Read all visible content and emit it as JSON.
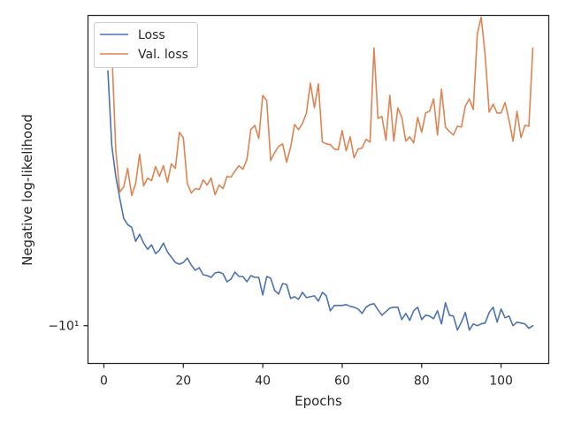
{
  "chart_data": {
    "type": "line",
    "xlabel": "Epochs",
    "ylabel": "Negative log-likelihood",
    "xlim": [
      -4,
      112
    ],
    "ylim": [
      -10.43,
      -6.47
    ],
    "yscale": "symlog",
    "xticks": [
      0,
      20,
      40,
      60,
      80,
      100
    ],
    "yticks": [
      {
        "value": -10,
        "label": "−10¹"
      }
    ],
    "legend": "top-left",
    "grid": false,
    "series": [
      {
        "name": "Loss",
        "color": "#4c72b0",
        "x": [
          1,
          2,
          3,
          4,
          5,
          6,
          7,
          8,
          9,
          10,
          11,
          12,
          13,
          14,
          15,
          16,
          17,
          18,
          19,
          20,
          21,
          22,
          23,
          24,
          25,
          26,
          27,
          28,
          29,
          30,
          31,
          32,
          33,
          34,
          35,
          36,
          37,
          38,
          39,
          40,
          41,
          42,
          43,
          44,
          45,
          46,
          47,
          48,
          49,
          50,
          51,
          52,
          53,
          54,
          55,
          56,
          57,
          58,
          59,
          60,
          61,
          62,
          63,
          64,
          65,
          66,
          67,
          68,
          69,
          70,
          71,
          72,
          73,
          74,
          75,
          76,
          77,
          78,
          79,
          80,
          81,
          82,
          83,
          84,
          85,
          86,
          87,
          88,
          89,
          90,
          91,
          92,
          93,
          94,
          95,
          96,
          97,
          98,
          99,
          100,
          101,
          102,
          103,
          104,
          105,
          106,
          107,
          108
        ],
        "y": [
          -7.1,
          -7.95,
          -8.3,
          -8.55,
          -8.78,
          -8.85,
          -8.88,
          -9.04,
          -8.96,
          -9.06,
          -9.13,
          -9.08,
          -9.18,
          -9.14,
          -9.06,
          -9.16,
          -9.22,
          -9.28,
          -9.3,
          -9.28,
          -9.23,
          -9.31,
          -9.37,
          -9.34,
          -9.42,
          -9.43,
          -9.45,
          -9.4,
          -9.39,
          -9.41,
          -9.5,
          -9.47,
          -9.39,
          -9.44,
          -9.44,
          -9.5,
          -9.43,
          -9.45,
          -9.45,
          -9.65,
          -9.44,
          -9.46,
          -9.6,
          -9.64,
          -9.52,
          -9.53,
          -9.69,
          -9.67,
          -9.7,
          -9.62,
          -9.68,
          -9.67,
          -9.66,
          -9.72,
          -9.62,
          -9.66,
          -9.83,
          -9.77,
          -9.77,
          -9.77,
          -9.76,
          -9.78,
          -9.79,
          -9.81,
          -9.86,
          -9.79,
          -9.76,
          -9.75,
          -9.82,
          -9.88,
          -9.84,
          -9.8,
          -9.79,
          -9.79,
          -9.93,
          -9.86,
          -9.94,
          -9.83,
          -9.79,
          -9.93,
          -9.88,
          -9.89,
          -9.92,
          -9.83,
          -9.98,
          -9.74,
          -9.88,
          -9.89,
          -10.05,
          -9.96,
          -9.85,
          -10.05,
          -9.98,
          -10.0,
          -9.98,
          -9.97,
          -9.85,
          -9.79,
          -9.96,
          -9.81,
          -9.91,
          -9.89,
          -10.0,
          -9.96,
          -9.97,
          -9.98,
          -10.03,
          -10.0
        ]
      },
      {
        "name": "Val. loss",
        "color": "#dd8452",
        "x": [
          1,
          2,
          3,
          4,
          5,
          6,
          7,
          8,
          9,
          10,
          11,
          12,
          13,
          14,
          15,
          16,
          17,
          18,
          19,
          20,
          21,
          22,
          23,
          24,
          25,
          26,
          27,
          28,
          29,
          30,
          31,
          32,
          33,
          34,
          35,
          36,
          37,
          38,
          39,
          40,
          41,
          42,
          43,
          44,
          45,
          46,
          47,
          48,
          49,
          50,
          51,
          52,
          53,
          54,
          55,
          56,
          57,
          58,
          59,
          60,
          61,
          62,
          63,
          64,
          65,
          66,
          67,
          68,
          69,
          70,
          71,
          72,
          73,
          74,
          75,
          76,
          77,
          78,
          79,
          80,
          81,
          82,
          83,
          84,
          85,
          86,
          87,
          88,
          89,
          90,
          91,
          92,
          93,
          94,
          95,
          96,
          97,
          98,
          99,
          100,
          101,
          102,
          103,
          104,
          105,
          106,
          107,
          108
        ],
        "y": [
          -6.82,
          -6.85,
          -8.0,
          -8.48,
          -8.42,
          -8.21,
          -8.52,
          -8.38,
          -8.05,
          -8.41,
          -8.32,
          -8.35,
          -8.19,
          -8.3,
          -8.18,
          -8.37,
          -8.16,
          -8.21,
          -7.8,
          -7.86,
          -8.38,
          -8.49,
          -8.44,
          -8.45,
          -8.34,
          -8.4,
          -8.32,
          -8.51,
          -8.4,
          -8.44,
          -8.3,
          -8.31,
          -8.24,
          -8.18,
          -8.22,
          -8.11,
          -7.77,
          -7.72,
          -7.87,
          -7.38,
          -7.44,
          -8.12,
          -8.03,
          -7.96,
          -7.93,
          -8.14,
          -7.97,
          -7.71,
          -7.77,
          -7.7,
          -7.58,
          -7.24,
          -7.52,
          -7.25,
          -7.91,
          -7.93,
          -7.94,
          -7.99,
          -8.0,
          -7.78,
          -8.01,
          -7.85,
          -8.09,
          -7.99,
          -7.98,
          -7.88,
          -7.91,
          -6.84,
          -7.64,
          -7.62,
          -7.89,
          -7.38,
          -7.9,
          -7.52,
          -7.63,
          -7.9,
          -7.85,
          -7.92,
          -7.63,
          -7.8,
          -7.58,
          -7.56,
          -7.42,
          -7.83,
          -7.31,
          -7.74,
          -7.79,
          -7.83,
          -7.73,
          -7.74,
          -7.5,
          -7.42,
          -7.54,
          -6.68,
          -6.49,
          -6.92,
          -7.57,
          -7.48,
          -7.58,
          -7.58,
          -7.46,
          -7.66,
          -7.9,
          -7.56,
          -7.86,
          -7.72,
          -7.73,
          -6.84
        ]
      }
    ]
  }
}
